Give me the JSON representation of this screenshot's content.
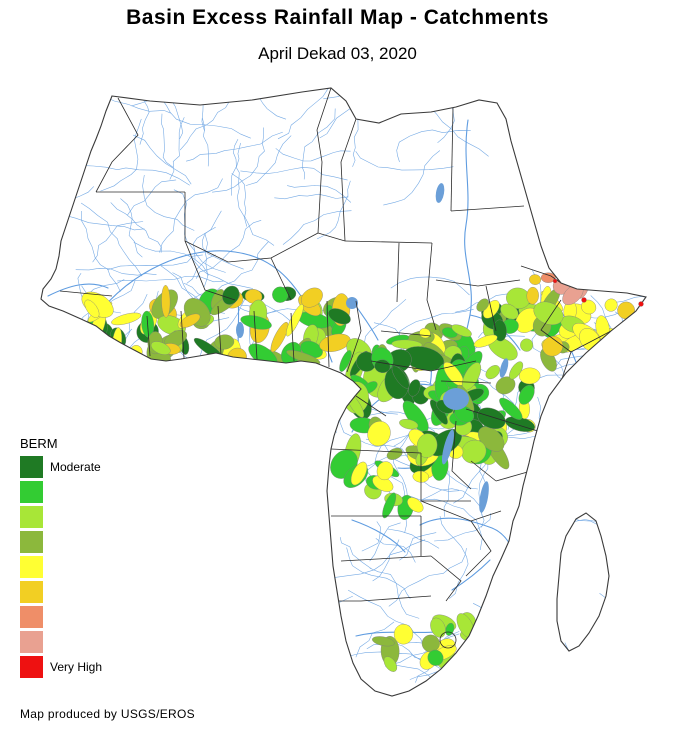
{
  "header": {
    "title": "Basin Excess Rainfall Map - Catchments",
    "subtitle": "April Dekad 03, 2020"
  },
  "legend": {
    "title": "BERM",
    "items": [
      {
        "color": "#1f7a24",
        "label": "Moderate"
      },
      {
        "color": "#33cc33",
        "label": ""
      },
      {
        "color": "#a8e637",
        "label": ""
      },
      {
        "color": "#8cb83c",
        "label": ""
      },
      {
        "color": "#ffff33",
        "label": ""
      },
      {
        "color": "#f2cf23",
        "label": ""
      },
      {
        "color": "#ef8e68",
        "label": ""
      },
      {
        "color": "#e9a191",
        "label": ""
      },
      {
        "color": "#ee1111",
        "label": "Very High"
      }
    ]
  },
  "map": {
    "colors": {
      "rivers": "#5f9ce0",
      "lakes": "#6b9fd8",
      "borders": "#2b2b2b",
      "coastline": "#3a3a3a"
    }
  },
  "footer": {
    "credit": "Map produced by USGS/EROS"
  }
}
